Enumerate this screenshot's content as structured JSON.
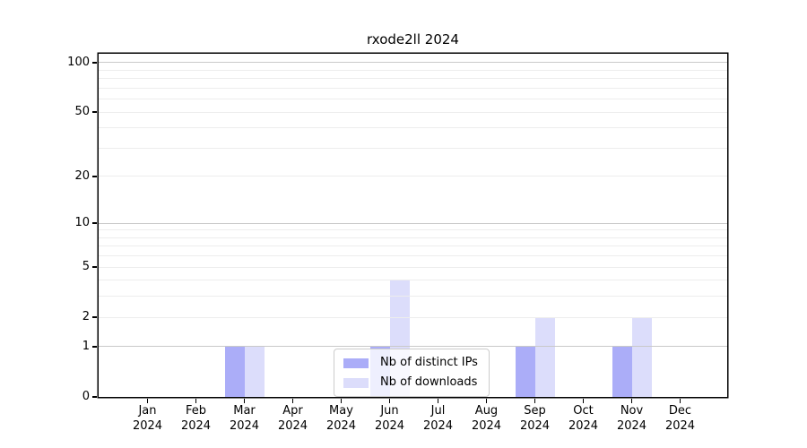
{
  "chart_data": {
    "type": "bar",
    "title": "rxode2ll 2024",
    "categories": [
      "Jan 2024",
      "Feb 2024",
      "Mar 2024",
      "Apr 2024",
      "May 2024",
      "Jun 2024",
      "Jul 2024",
      "Aug 2024",
      "Sep 2024",
      "Oct 2024",
      "Nov 2024",
      "Dec 2024"
    ],
    "x_tick_months": [
      "Jan",
      "Feb",
      "Mar",
      "Apr",
      "May",
      "Jun",
      "Jul",
      "Aug",
      "Sep",
      "Oct",
      "Nov",
      "Dec"
    ],
    "x_tick_year": "2024",
    "series": [
      {
        "key": "distinct_ips",
        "name": "Nb of distinct IPs",
        "color": "#abadf8",
        "values": [
          0,
          0,
          1,
          0,
          0,
          1,
          0,
          0,
          1,
          0,
          1,
          0
        ]
      },
      {
        "key": "downloads",
        "name": "Nb of downloads",
        "color": "#dcddfb",
        "values": [
          0,
          0,
          1,
          0,
          0,
          4,
          0,
          0,
          2,
          0,
          2,
          0
        ]
      }
    ],
    "yscale": "log1p",
    "ylim": [
      0,
      113
    ],
    "yticks": [
      0,
      1,
      2,
      5,
      10,
      20,
      50,
      100
    ],
    "major_gridlines": [
      1,
      10,
      100
    ],
    "minor_gridlines": [
      2,
      3,
      4,
      5,
      6,
      7,
      8,
      9,
      20,
      30,
      40,
      50,
      60,
      70,
      80,
      90
    ],
    "grid": "on",
    "legend_position": "lower center",
    "colors": {
      "spine": "#000000",
      "major_grid": "#c9c9c9",
      "minor_grid": "#ededed",
      "background": "#ffffff"
    }
  }
}
